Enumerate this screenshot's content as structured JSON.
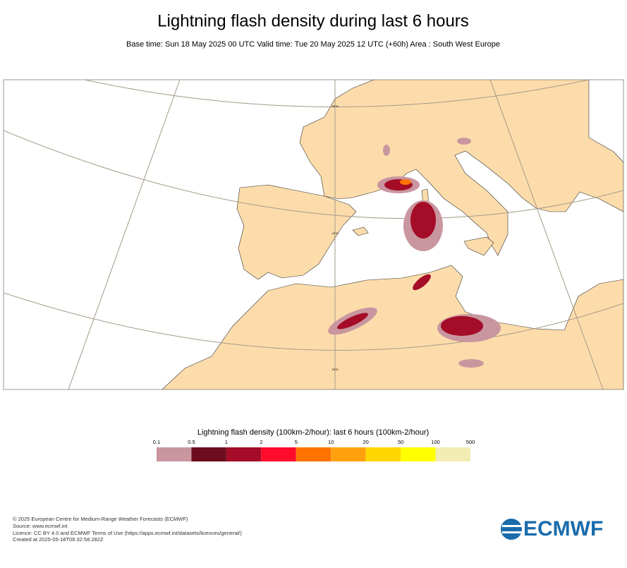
{
  "header": {
    "title": "Lightning flash density during last 6 hours",
    "subtitle": "Base time: Sun 18 May 2025 00 UTC Valid time: Tue 20 May 2025 12 UTC (+60h) Area : South West Europe"
  },
  "map": {
    "grid_labels": [
      "50°N",
      "40°N",
      "30°N"
    ]
  },
  "legend": {
    "title": "Lightning flash density (100km-2/hour): last 6 hours (100km-2/hour)",
    "bounds": [
      0.1,
      0.5,
      1,
      2,
      5,
      10,
      20,
      50,
      100,
      500
    ],
    "colors": [
      "#c9969f",
      "#6b0c1f",
      "#a40c27",
      "#ff0b2b",
      "#ff7300",
      "#ffa10f",
      "#ffd600",
      "#ffff00",
      "#f1edb5"
    ]
  },
  "footer": {
    "lines": [
      "© 2025 European Centre for Medium-Range Weather Forecasts (ECMWF)",
      "Source: www.ecmwf.int",
      "Licence: CC BY 4.0 and ECMWF Terms of Use (https://apps.ecmwf.int/datasets/licences/general/)",
      "Created at 2025-05-18T06:32:58.282Z"
    ],
    "logo": "ECMWF"
  }
}
